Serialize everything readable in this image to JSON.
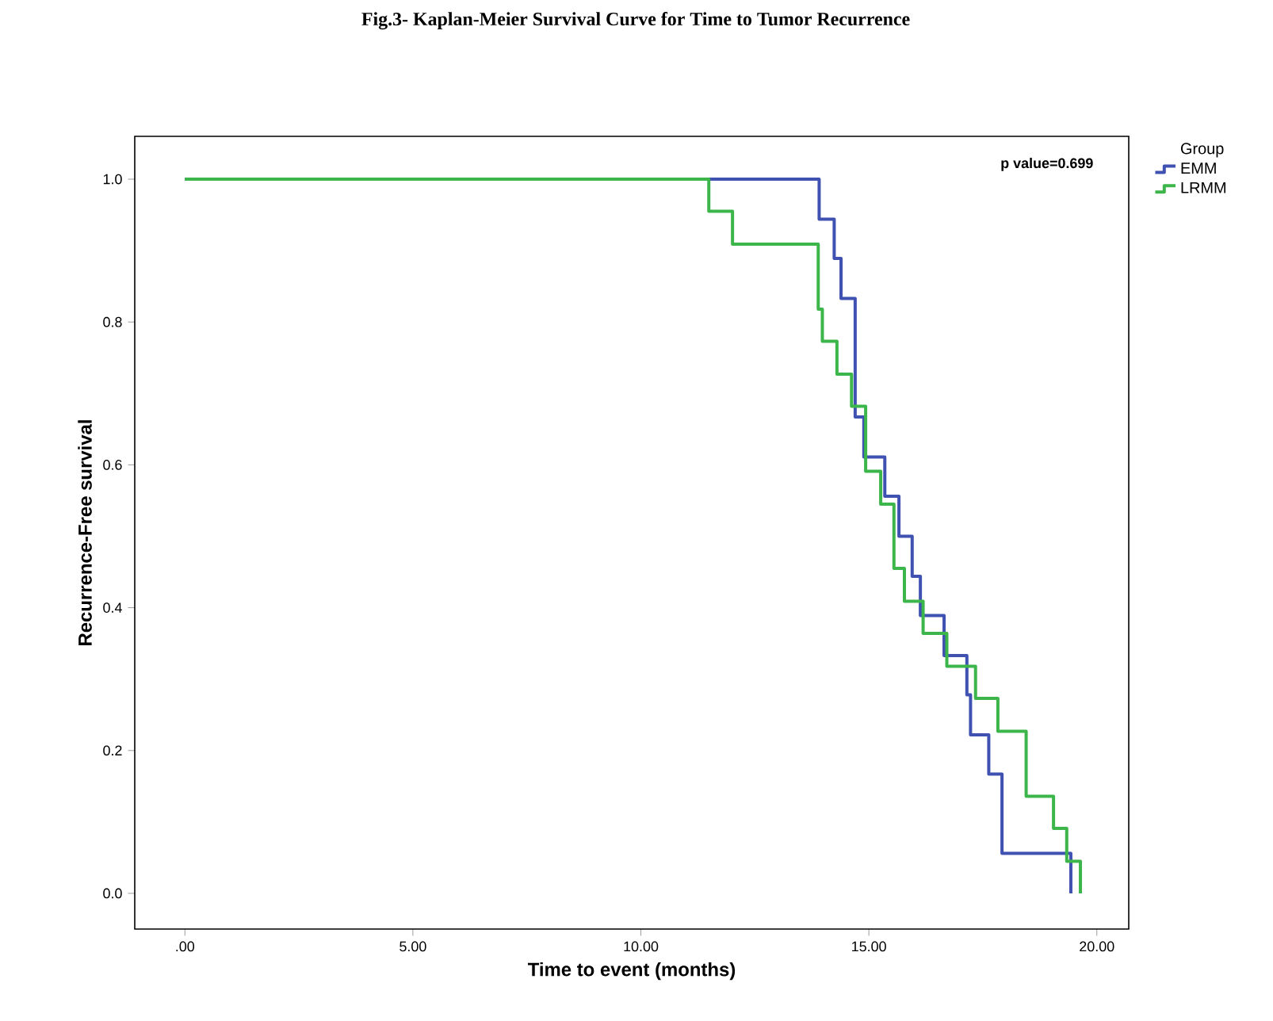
{
  "chart_data": {
    "type": "step",
    "title": "Fig.3- Kaplan-Meier Survival Curve for Time to Tumor Recurrence",
    "xlabel": "Time to event (months)",
    "ylabel": "Recurrence-Free survival",
    "legend_title": "Group",
    "legend": "right",
    "annotations": [
      "p value=0.699"
    ],
    "xlim": [
      -1.1,
      20.7
    ],
    "ylim": [
      -0.05,
      1.06
    ],
    "xticks": [
      {
        "value": 0,
        "label": ".00"
      },
      {
        "value": 5,
        "label": "5.00"
      },
      {
        "value": 10,
        "label": "10.00"
      },
      {
        "value": 15,
        "label": "15.00"
      },
      {
        "value": 20,
        "label": "20.00"
      }
    ],
    "yticks": [
      {
        "value": 0,
        "label": "0.0"
      },
      {
        "value": 0.2,
        "label": "0.2"
      },
      {
        "value": 0.4,
        "label": "0.4"
      },
      {
        "value": 0.6,
        "label": "0.6"
      },
      {
        "value": 0.8,
        "label": "0.8"
      },
      {
        "value": 1.0,
        "label": "1.0"
      }
    ],
    "grid": false,
    "marker": "none",
    "line_style": "solid",
    "series": [
      {
        "name": "EMM",
        "color": "#3f51b1",
        "x": [
          0,
          13.91,
          14.24,
          14.39,
          14.7,
          14.89,
          15.35,
          15.66,
          15.95,
          16.13,
          16.65,
          17.15,
          17.23,
          17.63,
          17.92,
          19.43
        ],
        "values": [
          1,
          0.944,
          0.889,
          0.833,
          0.667,
          0.611,
          0.556,
          0.5,
          0.444,
          0.389,
          0.333,
          0.278,
          0.222,
          0.167,
          0.056,
          0
        ]
      },
      {
        "name": "LRMM",
        "color": "#3cb54a",
        "x": [
          0,
          11.49,
          12.01,
          13.89,
          13.98,
          14.3,
          14.62,
          14.93,
          15.26,
          15.55,
          15.78,
          16.19,
          16.71,
          17.34,
          17.83,
          18.45,
          19.05,
          19.34,
          19.64
        ],
        "values": [
          1,
          0.955,
          0.909,
          0.818,
          0.773,
          0.727,
          0.682,
          0.591,
          0.545,
          0.455,
          0.409,
          0.364,
          0.318,
          0.273,
          0.227,
          0.136,
          0.091,
          0.045,
          0
        ]
      }
    ]
  }
}
